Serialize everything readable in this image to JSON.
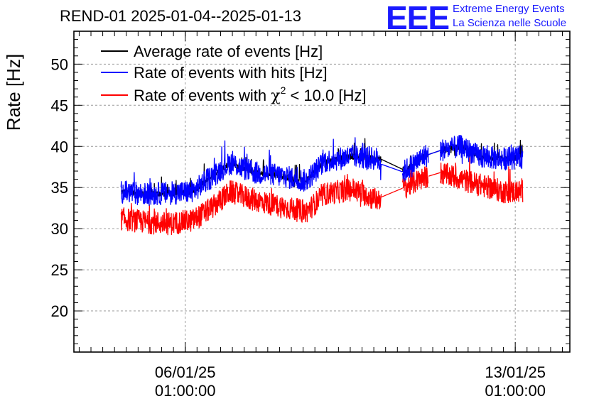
{
  "header": {
    "title": "REND-01 2025-01-04--2025-01-13",
    "logo_text": "EEE",
    "logo_line1": "Extreme Energy Events",
    "logo_line2": "La Scienza nelle Scuole"
  },
  "chart_data": {
    "type": "line",
    "title": "REND-01 2025-01-04--2025-01-13",
    "xlabel": "",
    "ylabel": "Rate [Hz]",
    "ylim": [
      15,
      54
    ],
    "yticks": [
      20,
      25,
      30,
      35,
      40,
      45,
      50
    ],
    "xrange_days": [
      "2025-01-04",
      "2025-01-13"
    ],
    "xtick_labels": [
      {
        "date": "06/01/25",
        "time": "01:00:00"
      },
      {
        "date": "13/01/25",
        "time": "01:00:00"
      }
    ],
    "grid": true,
    "legend_position": "top-left",
    "series": [
      {
        "name": "Average rate of events [Hz]",
        "color": "#000000",
        "x_day": [
          4.68,
          5.2,
          5.7,
          6.2,
          6.6,
          7.0,
          7.5,
          8.0,
          8.6,
          9.0,
          9.6,
          10.1,
          10.4,
          10.7,
          11.1,
          11.45,
          11.9,
          12.3,
          12.8,
          13.2
        ],
        "values": [
          34.5,
          34.2,
          34.3,
          34.5,
          36.3,
          38.0,
          36.8,
          36.5,
          35.8,
          38.2,
          38.8,
          38.5,
          38.3,
          37.0,
          38.8,
          39.5,
          40.0,
          38.7,
          38.5,
          38.7
        ]
      },
      {
        "name": "Rate of events with hits [Hz]",
        "color": "#0000ff",
        "x_day": [
          4.68,
          5.2,
          5.7,
          6.2,
          6.6,
          7.0,
          7.5,
          8.0,
          8.6,
          9.0,
          9.6,
          10.1,
          10.4,
          10.7,
          11.1,
          11.45,
          11.9,
          12.3,
          12.8,
          13.2
        ],
        "values": [
          34.5,
          34.2,
          34.3,
          34.5,
          36.3,
          38.0,
          36.8,
          36.5,
          35.8,
          38.2,
          38.8,
          38.5,
          36.5,
          37.0,
          38.8,
          39.5,
          40.0,
          38.7,
          38.5,
          38.7
        ]
      },
      {
        "name": "Rate of events with χ² < 10.0 [Hz]",
        "color": "#ff0000",
        "x_day": [
          4.68,
          5.2,
          5.7,
          6.2,
          6.6,
          7.0,
          7.5,
          8.0,
          8.6,
          9.0,
          9.6,
          10.1,
          10.4,
          10.7,
          11.1,
          11.45,
          11.9,
          12.3,
          12.8,
          13.2
        ],
        "values": [
          31.2,
          30.8,
          30.6,
          31.0,
          32.5,
          34.5,
          33.5,
          32.8,
          32.0,
          34.2,
          34.8,
          33.5,
          34.5,
          35.0,
          36.2,
          36.8,
          36.0,
          35.3,
          34.5,
          34.5
        ]
      }
    ],
    "gaps": [
      {
        "from": 10.2,
        "to": 10.65
      },
      {
        "from": 11.2,
        "to": 11.45
      }
    ],
    "legend_labels": [
      {
        "text": "Average rate of events [Hz]"
      },
      {
        "text": "Rate of events with hits [Hz]"
      },
      {
        "pre": "Rate of events with ",
        "chi": "χ",
        "sup": "2",
        "post": " < 10.0 [Hz]"
      }
    ]
  }
}
